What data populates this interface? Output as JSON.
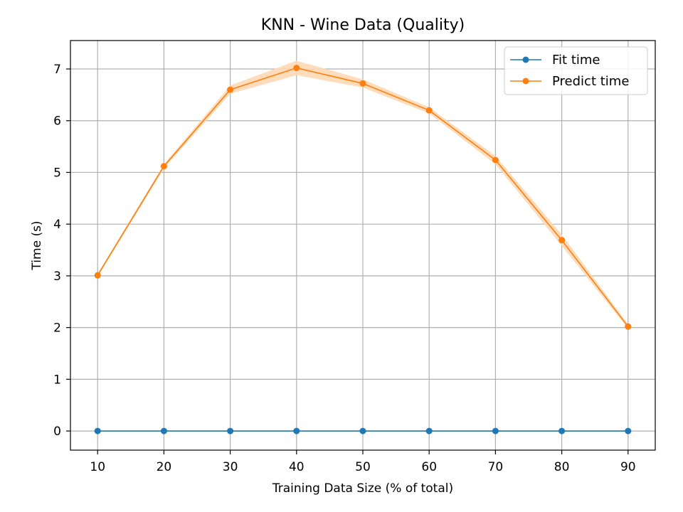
{
  "chart_data": {
    "type": "line",
    "title": "KNN - Wine Data (Quality)",
    "xlabel": "Training Data Size (% of total)",
    "ylabel": "Time (s)",
    "x": [
      10,
      20,
      30,
      40,
      50,
      60,
      70,
      80,
      90
    ],
    "xticks": [
      10,
      20,
      30,
      40,
      50,
      60,
      70,
      80,
      90
    ],
    "yticks": [
      0,
      1,
      2,
      3,
      4,
      5,
      6,
      7
    ],
    "xlim": [
      5.9,
      94.1
    ],
    "ylim": [
      -0.37,
      7.55
    ],
    "grid": true,
    "legend_position": "top-right",
    "series": [
      {
        "name": "Fit time",
        "color": "#1f77b4",
        "values": [
          0.0,
          0.0,
          0.0,
          0.0,
          0.0,
          0.0,
          0.0,
          0.0,
          0.0
        ],
        "band_lower": [
          0.0,
          0.0,
          0.0,
          0.0,
          0.0,
          0.0,
          0.0,
          0.0,
          0.0
        ],
        "band_upper": [
          0.0,
          0.0,
          0.0,
          0.0,
          0.0,
          0.0,
          0.0,
          0.0,
          0.0
        ]
      },
      {
        "name": "Predict time",
        "color": "#ff7f0e",
        "band_color": "#ffd8b4",
        "values": [
          3.01,
          5.12,
          6.6,
          7.02,
          6.72,
          6.2,
          5.24,
          3.69,
          2.02
        ],
        "band_lower": [
          2.98,
          5.08,
          6.52,
          6.88,
          6.64,
          6.14,
          5.16,
          3.58,
          1.98
        ],
        "band_upper": [
          3.04,
          5.16,
          6.68,
          7.16,
          6.8,
          6.26,
          5.32,
          3.8,
          2.06
        ]
      }
    ]
  }
}
